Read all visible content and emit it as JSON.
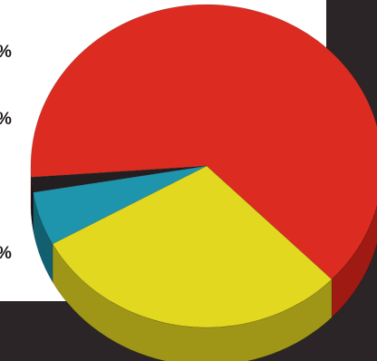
{
  "chart_data": {
    "type": "pie",
    "style": "3d",
    "title": "",
    "slices": [
      {
        "value": 63.5,
        "color": "#dc2c22",
        "side_color": "#9e1a12"
      },
      {
        "value": 29.6,
        "color": "#e2d81f",
        "side_color": "#9f9617"
      },
      {
        "value": 5.4,
        "color": "#1e95ad",
        "side_color": "#125f70"
      },
      {
        "value": 1.5,
        "color": "#231e20",
        "side_color": "#120f10"
      }
    ],
    "labels": [
      "%",
      "%",
      "%"
    ]
  }
}
